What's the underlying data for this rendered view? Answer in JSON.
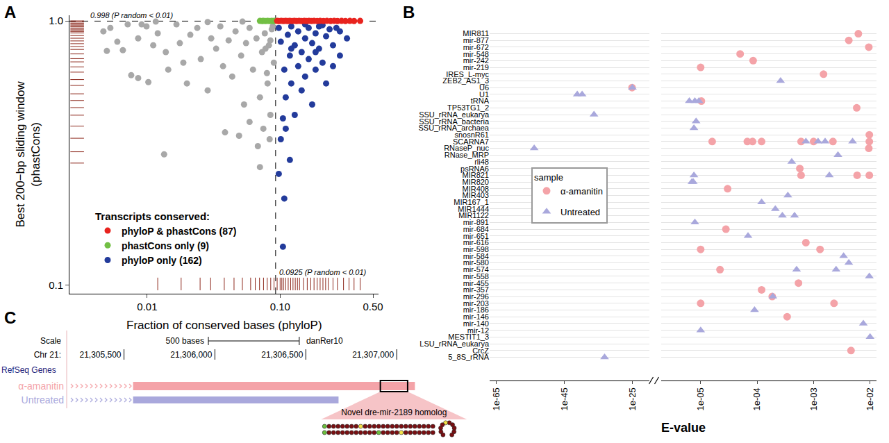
{
  "chart_data": [
    {
      "label": "A",
      "type": "scatter",
      "xlabel": "Fraction of conserved bases (phyloP)",
      "ylabel": [
        "Best 200−bp sliding window",
        "(phastCons)"
      ],
      "log": true,
      "grid": false,
      "xlim": [
        0.0026,
        0.55
      ],
      "ylim": [
        0.093,
        1.05
      ],
      "xticks": [
        0.01,
        {
          "value": 0.1,
          "label": "0.10"
        },
        {
          "value": 0.5,
          "label": "0.50"
        }
      ],
      "yticks": [
        0.1,
        {
          "value": 1,
          "label": "1.0"
        }
      ],
      "legend_title": "Transcripts conserved:",
      "legend": "bottom left",
      "thresholds": [
        {
          "axis": "y",
          "value": 0.998,
          "label": "0.998 (P random < 0.01)"
        },
        {
          "axis": "x",
          "value": 0.0925,
          "label": "0.0925 (P random < 0.01)"
        }
      ],
      "series": [
        {
          "name": "phyloP & phastCons (87)",
          "color": "#e8231e",
          "x": [
            0.095,
            0.098,
            0.102,
            0.106,
            0.11,
            0.114,
            0.118,
            0.123,
            0.128,
            0.133,
            0.139,
            0.145,
            0.152,
            0.158,
            0.165,
            0.172,
            0.18,
            0.19,
            0.2,
            0.212,
            0.225,
            0.24,
            0.255,
            0.27,
            0.29,
            0.31,
            0.335,
            0.36,
            0.4
          ],
          "y": [
            1,
            0.999,
            1,
            0.999,
            1,
            0.999,
            1,
            0.999,
            1,
            0.999,
            1,
            0.999,
            1,
            0.999,
            1,
            0.999,
            1,
            0.999,
            1,
            0.999,
            1,
            0.999,
            1,
            0.999,
            1,
            0.999,
            1,
            0.999,
            1
          ]
        },
        {
          "name": "phastCons only (9)",
          "color": "#72bf44",
          "x": [
            0.0705,
            0.0731,
            0.0748,
            0.0776,
            0.0805,
            0.0834,
            0.0865,
            0.0897,
            0.091
          ],
          "y": [
            1,
            0.999,
            1,
            0.999,
            1,
            0.999,
            1,
            0.999,
            1
          ]
        },
        {
          "name": "phyloP only (162)",
          "color": "#233b9b",
          "x": [
            0.0977,
            0.1012,
            0.105,
            0.1075,
            0.1075,
            0.1102,
            0.1143,
            0.1184,
            0.1213,
            0.1213,
            0.1288,
            0.1288,
            0.1368,
            0.1368,
            0.1452,
            0.1452,
            0.1542,
            0.1542,
            0.164,
            0.164,
            0.1742,
            0.1742,
            0.1849,
            0.1849,
            0.1963,
            0.1963,
            0.2085,
            0.2218,
            0.2218,
            0.2355,
            0.25,
            0.25,
            0.2818,
            0.2818,
            0.3184,
            0.1012,
            0.105,
            0.1102,
            0.1184,
            0.0977,
            0.1213,
            0.1542,
            0.2085,
            0.265,
            0.1849
          ],
          "y": [
            0.941,
            0.834,
            0.14,
            0.213,
            0.654,
            0.514,
            0.886,
            0.739,
            0.58,
            0.953,
            0.809,
            0.441,
            0.913,
            0.674,
            0.762,
            0.546,
            0.859,
            0.616,
            0.941,
            0.717,
            0.824,
            0.483,
            0.897,
            0.654,
            0.785,
            0.953,
            0.695,
            0.875,
            0.58,
            0.93,
            0.809,
            0.674,
            0.913,
            0.739,
            0.859,
            0.357,
            0.428,
            0.391,
            0.298,
            0.264,
            0.785,
            0.97,
            0.964,
            0.941,
            0.762
          ]
        },
        {
          "color": "#a8a8a8",
          "x": [
            0.00468,
            0.00528,
            0.00497,
            0.00656,
            0.00713,
            0.00758,
            0.00855,
            0.00855,
            0.00908,
            0.0102,
            0.0111,
            0.012,
            0.0134,
            0.0138,
            0.0144,
            0.0166,
            0.0176,
            0.0187,
            0.0199,
            0.0211,
            0.0238,
            0.0253,
            0.0285,
            0.0303,
            0.033,
            0.0355,
            0.0372,
            0.0385,
            0.041,
            0.0436,
            0.0462,
            0.0491,
            0.0509,
            0.0535,
            0.0554,
            0.0589,
            0.0589,
            0.0625,
            0.0664,
            0.068,
            0.0705,
            0.0705,
            0.0731,
            0.0748,
            0.0767,
            0.0796,
            0.0824,
            0.0845,
            0.0865,
            0.0897,
            0.0845,
            0.0805,
            0.0834,
            0.0776,
            0.088,
            0.00596,
            0.00988,
            0.0116,
            0.0285,
            0.0521
          ],
          "y": [
            0.913,
            0.941,
            0.77,
            0.775,
            0.97,
            0.623,
            0.608,
            0.859,
            0.97,
            0.587,
            0.809,
            0.897,
            0.313,
            0.762,
            0.654,
            0.97,
            0.824,
            0.695,
            0.58,
            0.886,
            0.941,
            0.717,
            0.546,
            0.859,
            0.785,
            0.953,
            0.674,
            0.379,
            0.844,
            0.616,
            0.913,
            0.368,
            0.739,
            0.483,
            0.824,
            0.941,
            0.415,
            0.654,
            0.859,
            0.336,
            0.514,
            0.28,
            0.762,
            0.391,
            0.897,
            0.635,
            0.809,
            0.441,
            0.93,
            0.695,
            0.844,
            0.58,
            0.357,
            0.785,
            0.953,
            0.834,
            0.953,
            0.994,
            0.99,
            0.994
          ]
        },
        {
          "type": "rug",
          "color": "#8e2a1e",
          "x": [
            0.012,
            0.018,
            0.025,
            0.03,
            0.038,
            0.045,
            0.052,
            0.06,
            0.065,
            0.07,
            0.075,
            0.08,
            0.085,
            0.09,
            0.095,
            0.1,
            0.103,
            0.106,
            0.11,
            0.115,
            0.12,
            0.125,
            0.13,
            0.135,
            0.14,
            0.15,
            0.16,
            0.17,
            0.18,
            0.19,
            0.2,
            0.21,
            0.22,
            0.23,
            0.25,
            0.27,
            0.3,
            0.33,
            0.36,
            0.4
          ]
        },
        {
          "type": "rug",
          "color": "#8e2a1e",
          "y": [
            1,
            0.99,
            0.98,
            0.97,
            0.96,
            0.95,
            0.94,
            0.93,
            0.92,
            0.91,
            0.9,
            0.88,
            0.86,
            0.84,
            0.82,
            0.8,
            0.78,
            0.75,
            0.72,
            0.7,
            0.67,
            0.64,
            0.6,
            0.57,
            0.53,
            0.5,
            0.47,
            0.44,
            0.4,
            0.36,
            0.32,
            0.29
          ]
        }
      ]
    },
    {
      "label": "B",
      "type": "scatter",
      "xlabel": "E-value",
      "log": "x",
      "grid": true,
      "categories": [
        "MIR811",
        "mir-877",
        "mir-672",
        "mir-548",
        "mir-242",
        "mir-219",
        "IRES_L-myc",
        "ZEB2_AS1_3",
        "U6",
        "U1",
        "tRNA",
        "TP53TG1_2",
        "SSU_rRNA_eukarya",
        "SSU_rRNA_bacteria",
        "SSU_rRNA_archaea",
        "snosnR61",
        "SCARNA7",
        "RNaseP_nuc",
        "RNase_MRP",
        "rli48",
        "psRNA6",
        "MIR821",
        "MIR820",
        "MIR408",
        "MIR403",
        "MIR167_1",
        "MIR1444",
        "MIR1122",
        "mir-891",
        "mir-684",
        "mir-651",
        "mir-616",
        "mir-598",
        "mir-584",
        "mir-580",
        "mir-574",
        "mir-558",
        "mir-455",
        "mir-357",
        "mir-296",
        "mir-203",
        "mir-186",
        "mir-146",
        "mir-140",
        "mir-12",
        "MESTIT1_3",
        "LSU_rRNA_eukarya",
        "CrcZ",
        "5_8S_rRNA"
      ],
      "xlim": [
        [
          1e-67,
          1e-20
        ],
        [
          2e-06,
          0.013
        ]
      ],
      "xticks": [
        [
          {
            "value": 1e-65,
            "label": "1e-65"
          },
          {
            "value": 1e-45,
            "label": "1e-45"
          },
          {
            "value": 1e-25,
            "label": "1e-25"
          }
        ],
        [
          {
            "value": 1e-05,
            "label": "1e-05"
          },
          {
            "value": 0.0001,
            "label": "1e-04"
          },
          {
            "value": 0.001,
            "label": "1e-03"
          },
          {
            "value": 0.01,
            "label": "1e-02"
          }
        ]
      ],
      "legend_title": "sample",
      "legend": "center",
      "series": [
        {
          "name": "α-amanitin",
          "color": "#f4a3a8",
          "marker": "circle",
          "x": [
            0.0062,
            0.0042,
            0.0095,
            5e-05,
            8.5e-05,
            1e-05,
            0.0015,
            8e-26,
            1.03e-05,
            0.0058,
            0.0097,
            1.6e-05,
            6.7e-05,
            8.3e-05,
            0.00012,
            0.0006,
            0.001,
            0.0022,
            0.0097,
            0.0095,
            0.00057,
            0.0006,
            0.0059,
            0.0097,
            3e-05,
            2.8e-05,
            0.00073,
            1e-05,
            0.0013,
            2.2e-05,
            0.00054,
            0.00012,
            0.000185,
            1e-05,
            0.0023,
            0.00034,
            0.0046
          ],
          "y": [
            "MIR811",
            "mir-877",
            "mir-672",
            "mir-548",
            "mir-242",
            "mir-219",
            "IRES_L-myc",
            "U6",
            "tRNA",
            "TP53TG1_2",
            "snosnR61",
            "SCARNA7",
            "SCARNA7",
            "SCARNA7",
            "SCARNA7",
            "SCARNA7",
            "SCARNA7",
            "SCARNA7",
            "SCARNA7",
            "RNaseP_nuc",
            "psRNA6",
            "MIR821",
            "MIR821",
            "MIR821",
            "MIR408",
            "mir-684",
            "mir-616",
            "mir-598",
            "mir-598",
            "mir-574",
            "mir-455",
            "mir-357",
            "mir-296",
            "mir-203",
            "mir-203",
            "mir-146",
            "CrcZ"
          ]
        },
        {
          "name": "Untreated",
          "color": "#a9a8dc",
          "marker": "triangle-up",
          "x": [
            0.00026,
            1e-25,
            6e-42,
            1.6e-40,
            6.3e-06,
            7.9e-06,
            9.3e-06,
            5e-37,
            8.3e-06,
            7.6e-06,
            0.00073,
            0.0012,
            0.0016,
            0.0049,
            1.3e-54,
            0.0027,
            0.00041,
            7.6e-06,
            0.0019,
            7e-06,
            7.4e-06,
            0.00035,
            0.00012,
            0.00021,
            0.00028,
            0.00046,
            7.9e-06,
            6.9e-05,
            0.0034,
            0.0042,
            0.0005,
            0.0025,
            0.0097,
            0.00019,
            9e-05,
            0.0076,
            1e-05,
            0.01,
            6.5e-34
          ],
          "y": [
            "ZEB2_AS1_3",
            "U6",
            "U1",
            "U1",
            "tRNA",
            "tRNA",
            "tRNA",
            "SSU_rRNA_eukarya",
            "SSU_rRNA_bacteria",
            "SSU_rRNA_archaea",
            "SCARNA7",
            "SCARNA7",
            "SCARNA7",
            "SCARNA7",
            "RNaseP_nuc",
            "RNase_MRP",
            "rli48",
            "MIR821",
            "MIR821",
            "MIR820",
            "MIR820",
            "MIR403",
            "MIR167_1",
            "MIR1444",
            "MIR1122",
            "MIR1122",
            "mir-891",
            "mir-651",
            "mir-584",
            "mir-580",
            "mir-574",
            "mir-574",
            "mir-558",
            "mir-296",
            "mir-186",
            "mir-140",
            "mir-12",
            "MESTIT1_3",
            "5_8S_rRNA"
          ]
        }
      ]
    }
  ],
  "diagram": {
    "label": "C",
    "view": [
      21305200,
      21307110
    ],
    "scale": {
      "title": "Scale",
      "length": 500,
      "length_label": "500 bases",
      "assembly": "danRer10"
    },
    "chromosome": {
      "label": "Chr 21:",
      "ticks": [
        {
          "value": 21305500,
          "label": "21,305,500"
        },
        {
          "value": 21306000,
          "label": "21,306,000"
        },
        {
          "value": 21306500,
          "label": "21,306,500"
        },
        {
          "value": 21307000,
          "label": "21,307,000"
        }
      ]
    },
    "track_group": "RefSeq Genes",
    "tracks": [
      {
        "name": "α-amanitin",
        "color": "#f4a3a8",
        "start": 21305200,
        "thick_start": 21305550,
        "end": 21307100
      },
      {
        "name": "Untreated",
        "color": "#a9a8dc",
        "start": 21305200,
        "thick_start": 21305550,
        "end": 21306680
      }
    ],
    "highlight": {
      "track": "α-amanitin",
      "start": 21306910,
      "end": 21307060,
      "label": "Novel dre-mir-2189 homolog"
    }
  }
}
